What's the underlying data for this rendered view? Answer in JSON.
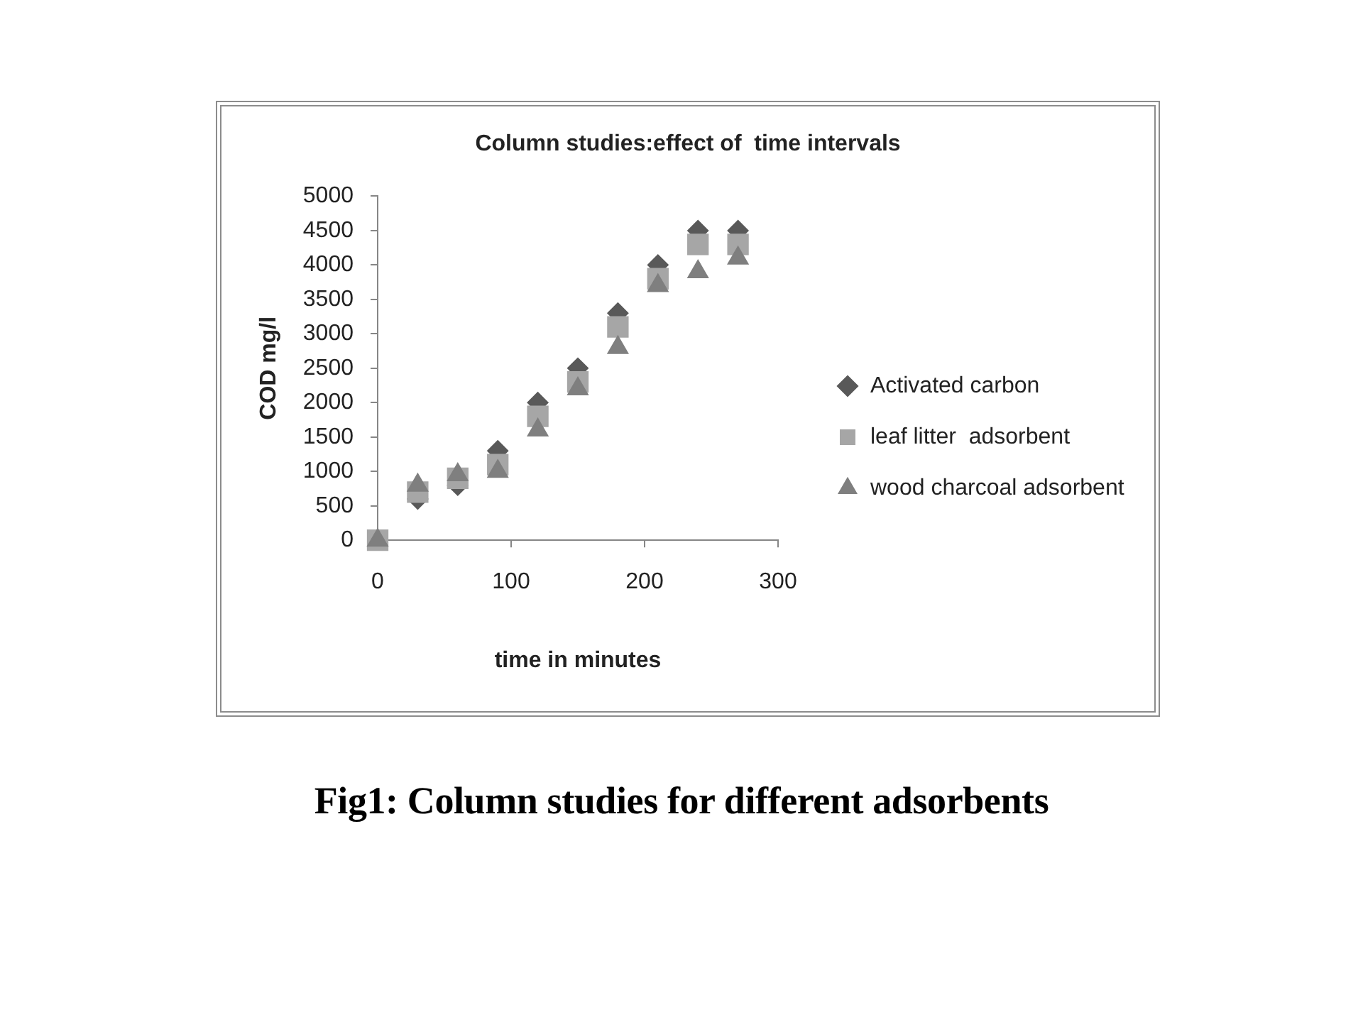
{
  "chart_data": {
    "type": "scatter",
    "title": "Column studies:effect of  time intervals",
    "xlabel": "time in minutes",
    "ylabel": "COD mg/l",
    "x": [
      0,
      30,
      60,
      90,
      120,
      150,
      180,
      210,
      240,
      270
    ],
    "series": [
      {
        "name": "Activated carbon",
        "color": "#595959",
        "marker": "diamond",
        "values": [
          null,
          600,
          800,
          1300,
          2000,
          2500,
          3300,
          4000,
          4500,
          4500
        ]
      },
      {
        "name": "leaf litter  adsorbent",
        "color": "#a6a6a6",
        "marker": "square",
        "values": [
          0,
          700,
          900,
          1100,
          1800,
          2300,
          3100,
          3800,
          4300,
          4300
        ]
      },
      {
        "name": "wood charcoal adsorbent",
        "color": "#7f7f7f",
        "marker": "triangle",
        "values": [
          0,
          800,
          950,
          1000,
          1600,
          2200,
          2800,
          3700,
          3900,
          4100
        ]
      }
    ],
    "xlim": [
      0,
      300
    ],
    "xticks": [
      0,
      100,
      200,
      300
    ],
    "ylim": [
      0,
      5000
    ],
    "yticks": [
      0,
      500,
      1000,
      1500,
      2000,
      2500,
      3000,
      3500,
      4000,
      4500,
      5000
    ],
    "grid": false,
    "legend": "right",
    "annotations": [
      "Fig1: Column studies for different adsorbents"
    ]
  }
}
